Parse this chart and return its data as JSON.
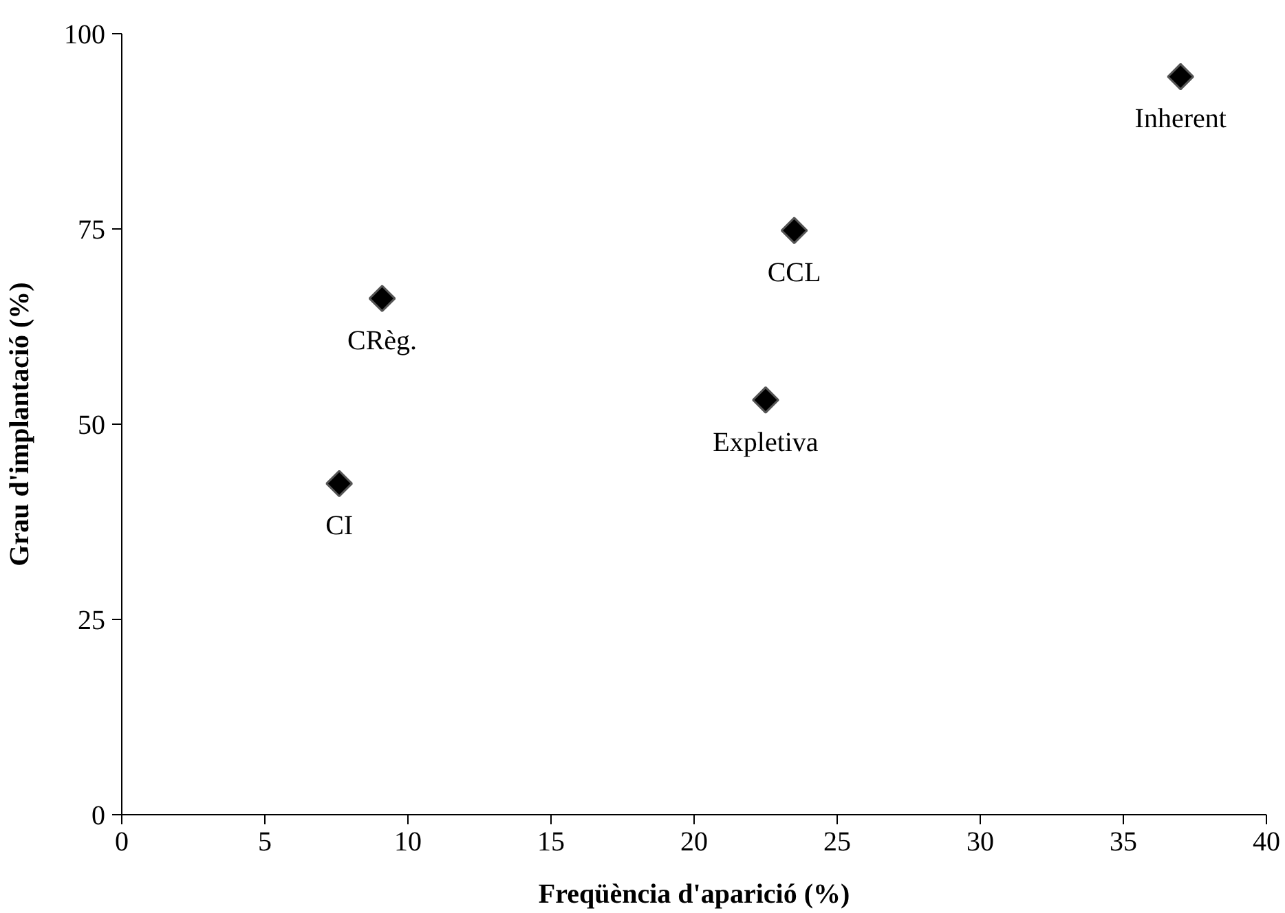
{
  "chart_data": {
    "type": "scatter",
    "xlabel": "Freqüència d'aparició (%)",
    "ylabel": "Grau d'implantació (%)",
    "x": [
      7.6,
      9.1,
      22.5,
      23.5,
      37.0
    ],
    "series": [
      {
        "color": "#000000",
        "values": [
          42.4,
          66.1,
          53.1,
          74.8,
          94.5
        ]
      }
    ],
    "marker": "diamond",
    "annotations": [
      {
        "text": "CI",
        "x": 7.6,
        "y": 42.4
      },
      {
        "text": "CRèg.",
        "x": 9.1,
        "y": 66.1
      },
      {
        "text": "Expletiva",
        "x": 22.5,
        "y": 53.1
      },
      {
        "text": "CCL",
        "x": 23.5,
        "y": 74.8
      },
      {
        "text": "Inherent",
        "x": 37.0,
        "y": 94.5
      }
    ],
    "xlim": [
      0,
      40
    ],
    "xticks": [
      0,
      5,
      10,
      15,
      20,
      25,
      30,
      35,
      40
    ],
    "ylim": [
      0,
      100
    ],
    "yticks": [
      0,
      25,
      50,
      75,
      100
    ],
    "grid": false
  }
}
